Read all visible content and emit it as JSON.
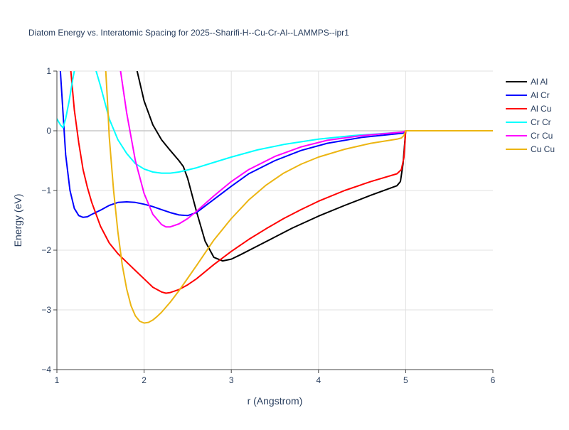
{
  "chart_data": {
    "type": "line",
    "title": "Diatom Energy vs. Interatomic Spacing for 2025--Sharifi-H--Cu-Cr-Al--LAMMPS--ipr1",
    "xlabel": "r (Angstrom)",
    "ylabel": "Energy (eV)",
    "xlim": [
      1,
      6
    ],
    "ylim": [
      -4,
      1
    ],
    "xticks": [
      "1",
      "2",
      "3",
      "4",
      "5",
      "6"
    ],
    "yticks": [
      "1",
      "0",
      "−1",
      "−2",
      "−3",
      "−4"
    ],
    "grid": true,
    "legend": "top-right",
    "series": [
      {
        "name": "Al Al",
        "color": "#000000",
        "x": [
          1.92,
          2.0,
          2.1,
          2.2,
          2.3,
          2.4,
          2.45,
          2.5,
          2.6,
          2.7,
          2.8,
          2.9,
          3.0,
          3.1,
          3.3,
          3.5,
          3.7,
          4.0,
          4.3,
          4.6,
          4.9,
          4.94,
          4.97,
          5.0,
          5.5,
          6.0
        ],
        "y": [
          1.0,
          0.5,
          0.1,
          -0.15,
          -0.33,
          -0.5,
          -0.6,
          -0.8,
          -1.35,
          -1.85,
          -2.12,
          -2.18,
          -2.15,
          -2.08,
          -1.93,
          -1.78,
          -1.63,
          -1.43,
          -1.25,
          -1.08,
          -0.92,
          -0.85,
          -0.55,
          0.0,
          0.0,
          0.0
        ]
      },
      {
        "name": "Al Cr",
        "color": "#0000ff",
        "x": [
          1.04,
          1.07,
          1.1,
          1.15,
          1.2,
          1.25,
          1.3,
          1.35,
          1.4,
          1.5,
          1.6,
          1.7,
          1.8,
          1.9,
          2.0,
          2.1,
          2.2,
          2.3,
          2.4,
          2.5,
          2.6,
          2.8,
          3.0,
          3.2,
          3.5,
          3.8,
          4.1,
          4.5,
          4.9,
          4.97,
          5.0,
          6.0
        ],
        "y": [
          1.0,
          0.3,
          -0.4,
          -1.0,
          -1.3,
          -1.42,
          -1.45,
          -1.44,
          -1.4,
          -1.33,
          -1.25,
          -1.2,
          -1.19,
          -1.2,
          -1.23,
          -1.27,
          -1.32,
          -1.37,
          -1.41,
          -1.42,
          -1.37,
          -1.15,
          -0.93,
          -0.72,
          -0.5,
          -0.33,
          -0.21,
          -0.11,
          -0.05,
          -0.04,
          0.0,
          0.0
        ]
      },
      {
        "name": "Al Cu",
        "color": "#ff0000",
        "x": [
          1.16,
          1.2,
          1.25,
          1.3,
          1.35,
          1.4,
          1.5,
          1.6,
          1.7,
          1.8,
          1.9,
          2.0,
          2.1,
          2.2,
          2.25,
          2.3,
          2.4,
          2.5,
          2.6,
          2.8,
          3.0,
          3.2,
          3.4,
          3.6,
          3.8,
          4.0,
          4.3,
          4.6,
          4.9,
          4.95,
          4.98,
          5.0,
          6.0
        ],
        "y": [
          1.0,
          0.35,
          -0.2,
          -0.65,
          -0.95,
          -1.2,
          -1.6,
          -1.88,
          -2.06,
          -2.2,
          -2.34,
          -2.48,
          -2.62,
          -2.7,
          -2.72,
          -2.71,
          -2.66,
          -2.58,
          -2.48,
          -2.24,
          -2.02,
          -1.82,
          -1.64,
          -1.47,
          -1.32,
          -1.18,
          -1.0,
          -0.85,
          -0.72,
          -0.65,
          -0.45,
          0.0,
          0.0
        ]
      },
      {
        "name": "Cr Cr",
        "color": "#00ffff",
        "x": [
          1.0,
          1.04,
          1.07,
          1.1,
          1.14,
          1.18,
          1.2,
          1.25,
          1.3,
          1.4,
          1.5,
          1.6,
          1.7,
          1.8,
          1.9,
          2.0,
          2.1,
          2.2,
          2.3,
          2.4,
          2.6,
          2.8,
          3.0,
          3.3,
          3.6,
          4.0,
          4.4,
          4.8,
          4.97,
          5.0,
          6.0
        ],
        "y": [
          0.2,
          0.1,
          0.05,
          0.2,
          0.5,
          0.85,
          1.0,
          1.4,
          1.7,
          1.25,
          0.75,
          0.2,
          -0.15,
          -0.38,
          -0.55,
          -0.64,
          -0.69,
          -0.71,
          -0.71,
          -0.69,
          -0.62,
          -0.53,
          -0.44,
          -0.32,
          -0.23,
          -0.14,
          -0.08,
          -0.04,
          -0.02,
          0.0,
          0.0
        ]
      },
      {
        "name": "Cr Cu",
        "color": "#ff00ff",
        "x": [
          1.73,
          1.8,
          1.9,
          2.0,
          2.1,
          2.2,
          2.25,
          2.3,
          2.4,
          2.5,
          2.6,
          2.8,
          3.0,
          3.2,
          3.5,
          3.8,
          4.1,
          4.5,
          4.9,
          4.97,
          5.0,
          6.0
        ],
        "y": [
          1.0,
          0.3,
          -0.5,
          -1.05,
          -1.4,
          -1.57,
          -1.61,
          -1.61,
          -1.56,
          -1.47,
          -1.35,
          -1.09,
          -0.85,
          -0.65,
          -0.43,
          -0.27,
          -0.16,
          -0.08,
          -0.03,
          -0.02,
          0.0,
          0.0
        ]
      },
      {
        "name": "Cu Cu",
        "color": "#ecb512",
        "x": [
          1.56,
          1.58,
          1.6,
          1.65,
          1.7,
          1.75,
          1.8,
          1.85,
          1.9,
          1.95,
          2.0,
          2.05,
          2.1,
          2.15,
          2.2,
          2.3,
          2.4,
          2.5,
          2.6,
          2.8,
          3.0,
          3.2,
          3.4,
          3.6,
          3.8,
          4.0,
          4.3,
          4.6,
          4.9,
          4.95,
          4.98,
          5.0,
          6.0
        ],
        "y": [
          1.0,
          0.5,
          -0.1,
          -1.0,
          -1.7,
          -2.25,
          -2.65,
          -2.93,
          -3.1,
          -3.19,
          -3.22,
          -3.21,
          -3.17,
          -3.11,
          -3.04,
          -2.87,
          -2.68,
          -2.47,
          -2.26,
          -1.83,
          -1.47,
          -1.16,
          -0.91,
          -0.71,
          -0.56,
          -0.44,
          -0.31,
          -0.21,
          -0.14,
          -0.12,
          -0.08,
          0.0,
          0.0
        ]
      }
    ]
  }
}
